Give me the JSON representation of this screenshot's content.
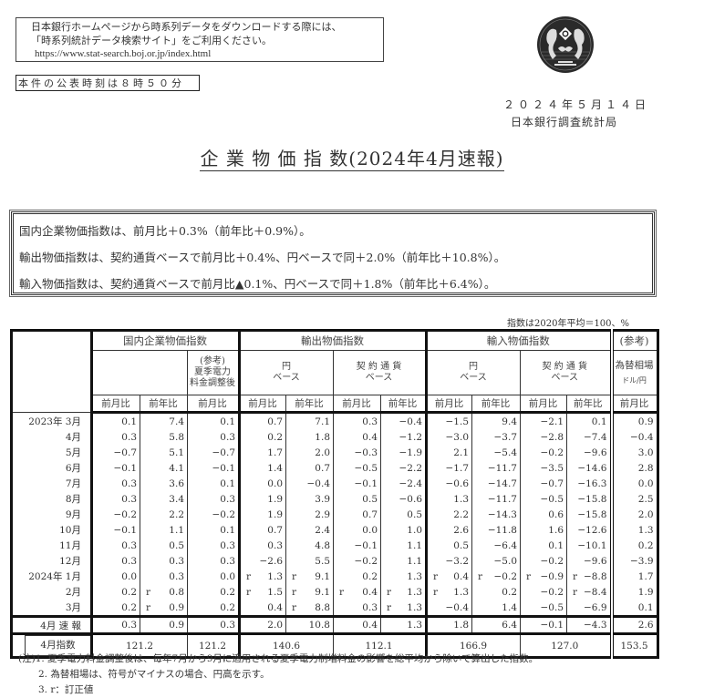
{
  "notice": {
    "line1": "日本銀行ホームページから時系列データをダウンロードする際には、",
    "line2": "「時系列統計データ検索サイト」をご利用ください。",
    "url": "https://www.stat-search.boj.or.jp/index.html"
  },
  "publish_time": "本件の公表時刻は８時５０分",
  "seal_icon": "boj-seal",
  "date": "２０２４年５月１４日",
  "department": "日本銀行調査統計局",
  "title": "企 業 物 価 指 数(2024年4月速報)",
  "summary": [
    "国内企業物価指数は、前月比＋0.3%（前年比＋0.9%）。",
    "輸出物価指数は、契約通貨ベースで前月比＋0.4%、円ベースで同＋2.0%（前年比＋10.8%）。",
    "輸入物価指数は、契約通貨ベースで前月比▲0.1%、円ベースで同＋1.8%（前年比＋6.4%）。"
  ],
  "unit_note": "指数は2020年平均＝100、%",
  "table": {
    "groups": {
      "domestic": "国内企業物価指数",
      "export": "輸出物価指数",
      "import": "輸入物価指数",
      "fx_ref": "(参考)"
    },
    "subgroups": {
      "summer_adj": [
        "(参考)",
        "夏季電力",
        "料金調整後"
      ],
      "yen_base": [
        "円",
        "ベース"
      ],
      "contract_base": [
        "契 約 通 貨",
        "ベース"
      ],
      "fx": [
        "為替相場",
        "ドル/円"
      ]
    },
    "col_headers": [
      "前月比",
      "前年比",
      "前月比",
      "前月比",
      "前年比",
      "前月比",
      "前年比",
      "前月比",
      "前年比",
      "前月比",
      "前年比",
      "前月比"
    ],
    "revised_mark": "r",
    "rows": [
      {
        "label": "2023年 3月",
        "cells": [
          "0.1",
          "7.4",
          "0.1",
          "0.7",
          "7.1",
          "0.3",
          "−0.4",
          "−1.5",
          "9.4",
          "−2.1",
          "0.1",
          "0.9"
        ]
      },
      {
        "label": "4月",
        "cells": [
          "0.3",
          "5.8",
          "0.3",
          "0.2",
          "1.8",
          "0.4",
          "−1.2",
          "−3.0",
          "−3.7",
          "−2.8",
          "−7.4",
          "−0.4"
        ]
      },
      {
        "label": "5月",
        "cells": [
          "−0.7",
          "5.1",
          "−0.7",
          "1.7",
          "2.0",
          "−0.3",
          "−1.9",
          "2.1",
          "−5.4",
          "−0.2",
          "−9.6",
          "3.0"
        ]
      },
      {
        "label": "6月",
        "cells": [
          "−0.1",
          "4.1",
          "−0.1",
          "1.4",
          "0.7",
          "−0.5",
          "−2.2",
          "−1.7",
          "−11.7",
          "−3.5",
          "−14.6",
          "2.8"
        ]
      },
      {
        "label": "7月",
        "cells": [
          "0.3",
          "3.6",
          "0.1",
          "0.0",
          "−0.4",
          "−0.1",
          "−2.4",
          "−0.6",
          "−14.7",
          "−0.7",
          "−16.3",
          "0.0"
        ]
      },
      {
        "label": "8月",
        "cells": [
          "0.3",
          "3.4",
          "0.3",
          "1.9",
          "3.9",
          "0.5",
          "−0.6",
          "1.3",
          "−11.7",
          "−0.5",
          "−15.8",
          "2.5"
        ]
      },
      {
        "label": "9月",
        "cells": [
          "−0.2",
          "2.2",
          "−0.2",
          "1.9",
          "2.9",
          "0.7",
          "0.5",
          "2.2",
          "−14.3",
          "0.6",
          "−15.8",
          "2.0"
        ]
      },
      {
        "label": "10月",
        "cells": [
          "−0.1",
          "1.1",
          "0.1",
          "0.7",
          "2.4",
          "0.0",
          "1.0",
          "2.6",
          "−11.8",
          "1.6",
          "−12.6",
          "1.3"
        ]
      },
      {
        "label": "11月",
        "cells": [
          "0.3",
          "0.5",
          "0.3",
          "0.3",
          "4.8",
          "−0.1",
          "1.1",
          "0.5",
          "−6.4",
          "0.1",
          "−10.1",
          "0.2"
        ]
      },
      {
        "label": "12月",
        "cells": [
          "0.3",
          "0.3",
          "0.3",
          "−2.6",
          "5.5",
          "−0.2",
          "1.1",
          "−3.2",
          "−5.0",
          "−0.2",
          "−9.6",
          "−3.9"
        ]
      },
      {
        "label": "2024年 1月",
        "cells": [
          "0.0",
          "0.3",
          "0.0",
          "r 1.3",
          "r 9.1",
          "0.2",
          "1.3",
          "r 0.4",
          "r −0.2",
          "r −0.9",
          "r −8.8",
          "1.7"
        ]
      },
      {
        "label": "2月",
        "cells": [
          "0.2",
          "r 0.8",
          "0.2",
          "r 1.5",
          "r 9.1",
          "r 0.4",
          "r 1.3",
          "r 1.3",
          "0.2",
          "−0.2",
          "r −8.4",
          "1.9"
        ]
      },
      {
        "label": "3月",
        "cells": [
          "0.2",
          "r 0.9",
          "0.2",
          "0.4",
          "r 8.8",
          "0.3",
          "r 1.3",
          "−0.4",
          "1.4",
          "−0.5",
          "−6.9",
          "0.1"
        ]
      }
    ],
    "prelim_row": {
      "label": "4月 速 報",
      "cells": [
        "0.3",
        "0.9",
        "0.3",
        "2.0",
        "10.8",
        "0.4",
        "1.3",
        "1.8",
        "6.4",
        "−0.1",
        "−4.3",
        "2.6"
      ]
    },
    "index_row": {
      "label": "4月指数",
      "domestic": "121.2",
      "domestic_adj": "121.2",
      "export_yen": "140.6",
      "export_contract": "112.1",
      "import_yen": "166.9",
      "import_contract": "127.0",
      "fx": "153.5"
    }
  },
  "notes": [
    "(注)1. 夏季電力料金調整後は、毎年7月から9月に適用される夏季電力制増料金の影響を総平均から除いて算出した指数。",
    "2. 為替相場は、符号がマイナスの場合、円高を示す。",
    "3. r：訂正値"
  ]
}
